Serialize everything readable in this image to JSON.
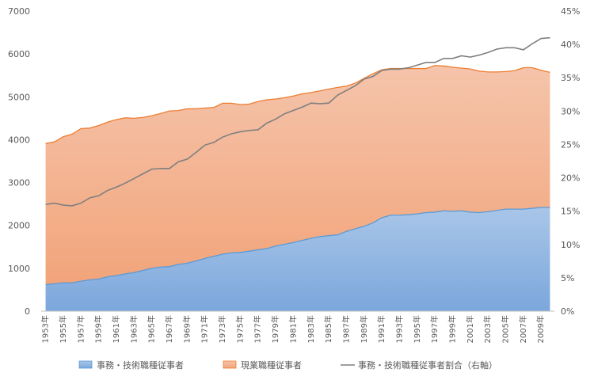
{
  "chart_data": {
    "type": "area",
    "title": "",
    "x_labels": [
      "1953年",
      "1955年",
      "1957年",
      "1959年",
      "1961年",
      "1963年",
      "1965年",
      "1967年",
      "1969年",
      "1971年",
      "1973年",
      "1975年",
      "1977年",
      "1979年",
      "1981年",
      "1983年",
      "1985年",
      "1987年",
      "1989年",
      "1991年",
      "1993年",
      "1995年",
      "1997年",
      "1999年",
      "2001年",
      "2003年",
      "2005年",
      "2007年",
      "2009年"
    ],
    "years": [
      1953,
      1954,
      1955,
      1956,
      1957,
      1958,
      1959,
      1960,
      1961,
      1962,
      1963,
      1964,
      1965,
      1966,
      1967,
      1968,
      1969,
      1970,
      1971,
      1972,
      1973,
      1974,
      1975,
      1976,
      1977,
      1978,
      1979,
      1980,
      1981,
      1982,
      1983,
      1984,
      1985,
      1986,
      1987,
      1988,
      1989,
      1990,
      1991,
      1992,
      1993,
      1994,
      1995,
      1996,
      1997,
      1998,
      1999,
      2000,
      2001,
      2002,
      2003,
      2004,
      2005,
      2006,
      2007,
      2008,
      2009,
      2010
    ],
    "series": [
      {
        "name": "事務・技術職種従事者",
        "axis": "left",
        "color": "#9dc3e6",
        "values": [
          620,
          640,
          660,
          660,
          700,
          730,
          750,
          800,
          830,
          870,
          900,
          950,
          1000,
          1030,
          1040,
          1090,
          1120,
          1170,
          1230,
          1280,
          1330,
          1360,
          1370,
          1400,
          1430,
          1460,
          1520,
          1560,
          1600,
          1650,
          1700,
          1740,
          1760,
          1780,
          1860,
          1920,
          1980,
          2060,
          2180,
          2240,
          2240,
          2250,
          2270,
          2300,
          2310,
          2340,
          2330,
          2340,
          2310,
          2300,
          2320,
          2350,
          2380,
          2380,
          2380,
          2400,
          2420,
          2420
        ]
      },
      {
        "name": "現業職種従事者",
        "axis": "left",
        "color": "#f4b183",
        "values": [
          3290,
          3310,
          3410,
          3470,
          3560,
          3540,
          3580,
          3610,
          3640,
          3640,
          3600,
          3570,
          3560,
          3580,
          3630,
          3590,
          3600,
          3550,
          3510,
          3470,
          3520,
          3490,
          3450,
          3430,
          3460,
          3470,
          3430,
          3420,
          3420,
          3420,
          3400,
          3400,
          3420,
          3440,
          3390,
          3400,
          3450,
          3480,
          3450,
          3420,
          3420,
          3410,
          3390,
          3360,
          3420,
          3380,
          3360,
          3330,
          3340,
          3300,
          3260,
          3230,
          3210,
          3230,
          3300,
          3280,
          3200,
          3150
        ]
      },
      {
        "name": "事務・技術職種従事者割合（右軸）",
        "axis": "right",
        "color": "#7f7f7f",
        "values": [
          16.0,
          16.2,
          15.9,
          15.8,
          16.2,
          17.0,
          17.3,
          18.1,
          18.6,
          19.2,
          19.9,
          20.6,
          21.3,
          21.4,
          21.4,
          22.4,
          22.8,
          23.8,
          24.9,
          25.3,
          26.1,
          26.6,
          26.9,
          27.1,
          27.2,
          28.2,
          28.8,
          29.6,
          30.1,
          30.6,
          31.2,
          31.1,
          31.2,
          32.4,
          33.1,
          33.8,
          34.8,
          35.2,
          36.1,
          36.3,
          36.3,
          36.5,
          36.9,
          37.3,
          37.3,
          37.9,
          37.9,
          38.3,
          38.1,
          38.4,
          38.8,
          39.3,
          39.5,
          39.5,
          39.2,
          40.1,
          40.9,
          41.0
        ]
      }
    ],
    "y_left": {
      "min": 0,
      "max": 7000,
      "ticks": [
        "0",
        "1000",
        "2000",
        "3000",
        "4000",
        "5000",
        "6000",
        "7000"
      ]
    },
    "y_right": {
      "min": 0,
      "max": 45,
      "ticks": [
        "0%",
        "5%",
        "10%",
        "15%",
        "20%",
        "25%",
        "30%",
        "35%",
        "40%",
        "45%"
      ]
    },
    "xlabel": "",
    "ylabel": "",
    "grid": false,
    "legend_position": "bottom"
  }
}
